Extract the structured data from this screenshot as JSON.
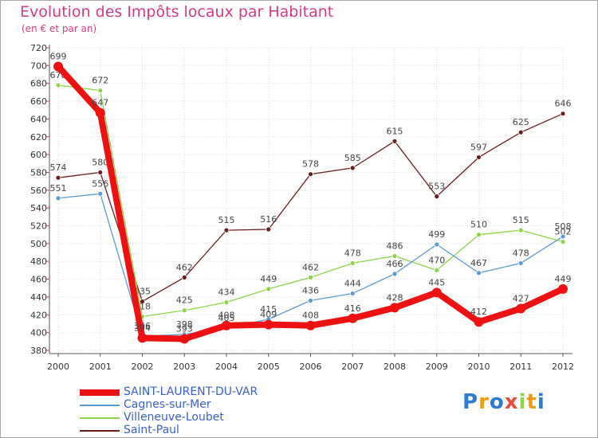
{
  "title": "Evolution des Impôts locaux par Habitant",
  "subtitle": "(en € et par an)",
  "logo": {
    "text": "Proxiti"
  },
  "chart_data": {
    "type": "line",
    "title": "Evolution des Impôts locaux par Habitant",
    "subtitle": "(en € et par an)",
    "xlabel": "",
    "ylabel": "",
    "ylim": [
      380,
      720
    ],
    "y_ticks": [
      380,
      400,
      420,
      440,
      460,
      480,
      500,
      520,
      540,
      560,
      580,
      600,
      620,
      640,
      660,
      680,
      700,
      720
    ],
    "grid": true,
    "legend": "bottom-left",
    "x": [
      "2000",
      "2001",
      "2002",
      "2003",
      "2004",
      "2005",
      "2006",
      "2007",
      "2008",
      "2009",
      "2010",
      "2011",
      "2012"
    ],
    "series": [
      {
        "name": "Saint-Paul",
        "color": "#6b1c1c",
        "values": [
          574,
          580,
          435,
          462,
          515,
          516,
          578,
          585,
          615,
          553,
          597,
          625,
          646
        ]
      },
      {
        "name": "Villeneuve-Loubet",
        "color": "#8ed44a",
        "values": [
          678,
          672,
          418,
          425,
          434,
          449,
          462,
          478,
          486,
          470,
          510,
          515,
          502
        ]
      },
      {
        "name": "Cagnes-sur-Mer",
        "color": "#5b9bd5",
        "values": [
          551,
          556,
          396,
          398,
          405,
          415,
          436,
          444,
          466,
          499,
          467,
          478,
          508
        ]
      },
      {
        "name": "SAINT-LAURENT-DU-VAR",
        "color": "#ee1111",
        "values": [
          699,
          647,
          394,
          393,
          408,
          409,
          408,
          416,
          428,
          445,
          412,
          427,
          449
        ]
      }
    ]
  }
}
